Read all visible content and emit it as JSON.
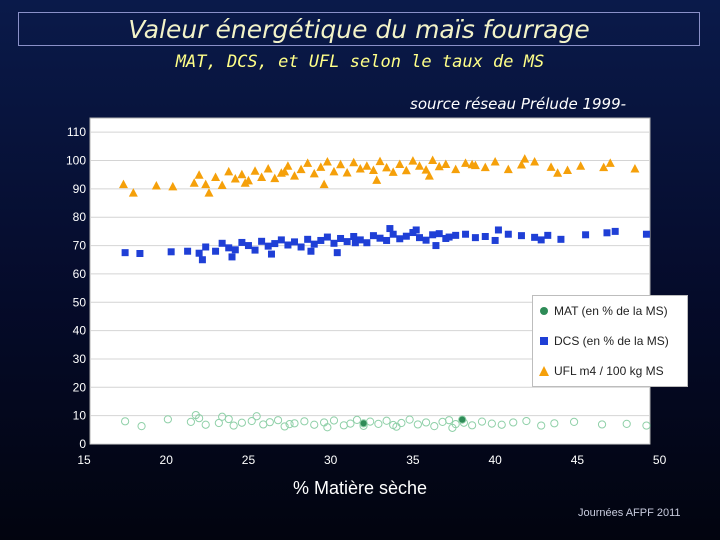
{
  "header": {
    "title": "Valeur énergétique du maïs fourrage",
    "subtitle": "MAT, DCS, et UFL selon le taux de MS",
    "source": "source réseau Prélude 1999-"
  },
  "footer": {
    "text": "Journées AFPF 2011"
  },
  "chart_data": {
    "type": "scatter",
    "title": "Valeur énergétique du maïs fourrage",
    "subtitle": "MAT, DCS, et UFL selon le taux de MS",
    "xlabel": "% Matière sèche",
    "ylabel": "",
    "xlim": [
      15,
      50
    ],
    "ylim": [
      0,
      115
    ],
    "x_ticks": [
      "15",
      "20",
      "25",
      "30",
      "35",
      "40",
      "45",
      "50"
    ],
    "y_ticks": [
      "0",
      "10",
      "20",
      "30",
      "40",
      "50",
      "60",
      "70",
      "80",
      "90",
      "100",
      "110"
    ],
    "grid": "horizontal",
    "legend": "right",
    "series": [
      {
        "name": "MAT (en % de la MS)",
        "marker": "circle",
        "color": "#2e8b57",
        "x": [
          17.5,
          18.5,
          20.1,
          21.5,
          22.0,
          22.4,
          23.2,
          23.8,
          24.1,
          24.6,
          25.2,
          25.9,
          26.3,
          26.8,
          27.2,
          27.8,
          28.4,
          29.0,
          29.6,
          30.2,
          30.8,
          31.2,
          31.6,
          32.0,
          32.4,
          32.9,
          33.4,
          33.8,
          34.3,
          34.8,
          35.3,
          35.8,
          36.3,
          36.8,
          37.2,
          37.6,
          38.1,
          38.6,
          39.2,
          39.8,
          40.4,
          41.1,
          41.9,
          42.8,
          43.6,
          44.8,
          46.5,
          48.0,
          49.2,
          21.8,
          23.4,
          25.5,
          27.5,
          29.8,
          34.0,
          37.4,
          32.0,
          38.0
        ],
        "y": [
          8.0,
          6.3,
          8.7,
          7.8,
          9.1,
          6.8,
          7.4,
          8.8,
          6.5,
          7.5,
          8.1,
          6.9,
          7.7,
          8.4,
          6.2,
          7.3,
          8.0,
          6.8,
          7.6,
          8.3,
          6.6,
          7.2,
          8.5,
          6.4,
          7.9,
          7.1,
          8.2,
          6.7,
          7.4,
          8.6,
          6.9,
          7.6,
          6.3,
          7.8,
          8.4,
          7.0,
          7.5,
          6.6,
          7.9,
          7.2,
          6.8,
          7.6,
          8.1,
          6.5,
          7.3,
          7.8,
          6.9,
          7.1,
          6.5,
          10.2,
          9.6,
          9.8,
          7.0,
          5.9,
          6.1,
          5.7,
          7.3,
          8.6
        ]
      },
      {
        "name": "DCS (en % de la MS)",
        "marker": "square",
        "color": "#1f3fd6",
        "x": [
          17.5,
          18.4,
          20.3,
          21.3,
          22.0,
          22.4,
          23.0,
          23.4,
          23.8,
          24.2,
          24.6,
          25.0,
          25.4,
          25.8,
          26.2,
          26.6,
          27.0,
          27.4,
          27.8,
          28.2,
          28.6,
          29.0,
          29.4,
          29.8,
          30.2,
          30.6,
          31.0,
          31.4,
          31.8,
          32.2,
          32.6,
          33.0,
          33.4,
          33.8,
          34.2,
          34.6,
          35.0,
          35.4,
          35.8,
          36.2,
          36.6,
          37.0,
          37.6,
          38.2,
          38.8,
          39.4,
          40.0,
          40.8,
          41.6,
          42.4,
          43.2,
          44.0,
          45.5,
          46.8,
          47.3,
          49.2,
          22.2,
          24.0,
          26.4,
          28.8,
          30.4,
          31.5,
          33.6,
          35.2,
          36.4,
          37.2,
          40.2,
          42.8
        ],
        "y": [
          67.5,
          67.2,
          67.8,
          68.0,
          67.3,
          69.5,
          68.0,
          70.8,
          69.2,
          68.5,
          71.1,
          70.0,
          68.4,
          71.5,
          69.8,
          70.7,
          72.0,
          70.2,
          71.3,
          69.5,
          72.2,
          70.5,
          71.8,
          73.0,
          70.8,
          72.5,
          71.4,
          73.2,
          72.0,
          71.0,
          73.5,
          72.6,
          71.8,
          74.0,
          72.4,
          73.3,
          74.6,
          72.8,
          71.9,
          73.8,
          74.2,
          72.5,
          73.6,
          74.0,
          72.8,
          73.2,
          71.8,
          74.0,
          73.5,
          72.9,
          73.6,
          72.2,
          73.8,
          74.5,
          75.0,
          74.0,
          65.0,
          66.0,
          67.0,
          68.0,
          67.5,
          71.0,
          76.0,
          75.5,
          70.0,
          73.0,
          75.5,
          72.0
        ]
      },
      {
        "name": "UFL m4 / 100 kg MS",
        "marker": "triangle",
        "color": "#f5a00a",
        "x": [
          17.4,
          18.0,
          19.4,
          20.4,
          21.7,
          22.0,
          22.4,
          23.0,
          23.4,
          23.8,
          24.2,
          24.6,
          25.0,
          25.4,
          25.8,
          26.2,
          26.6,
          27.0,
          27.4,
          27.8,
          28.2,
          28.6,
          29.0,
          29.4,
          29.8,
          30.2,
          30.6,
          31.0,
          31.4,
          31.8,
          32.2,
          32.6,
          33.0,
          33.4,
          33.8,
          34.2,
          34.6,
          35.0,
          35.4,
          35.8,
          36.2,
          36.6,
          37.0,
          37.6,
          38.2,
          38.8,
          39.4,
          40.0,
          40.8,
          41.6,
          42.4,
          43.4,
          44.4,
          45.2,
          46.6,
          47.0,
          48.5,
          22.6,
          24.8,
          27.2,
          29.6,
          32.8,
          36.0,
          38.6,
          41.8,
          43.8
        ],
        "y": [
          91.5,
          88.5,
          91.0,
          90.7,
          92.0,
          94.8,
          91.5,
          94.0,
          91.2,
          96.0,
          93.5,
          95.0,
          92.8,
          96.2,
          94.0,
          97.0,
          93.6,
          95.5,
          98.0,
          94.5,
          96.8,
          99.0,
          95.3,
          97.6,
          99.5,
          96.0,
          98.5,
          95.6,
          99.2,
          97.0,
          98.0,
          96.5,
          99.6,
          97.4,
          95.8,
          98.6,
          96.4,
          99.8,
          98.0,
          96.6,
          100.0,
          97.8,
          98.6,
          96.8,
          99.0,
          98.2,
          97.5,
          99.5,
          96.8,
          98.4,
          99.5,
          97.6,
          96.5,
          98.0,
          97.5,
          99.0,
          97.0,
          88.5,
          92.0,
          96.0,
          91.5,
          93.0,
          94.5,
          98.5,
          100.5,
          95.5
        ]
      }
    ]
  }
}
